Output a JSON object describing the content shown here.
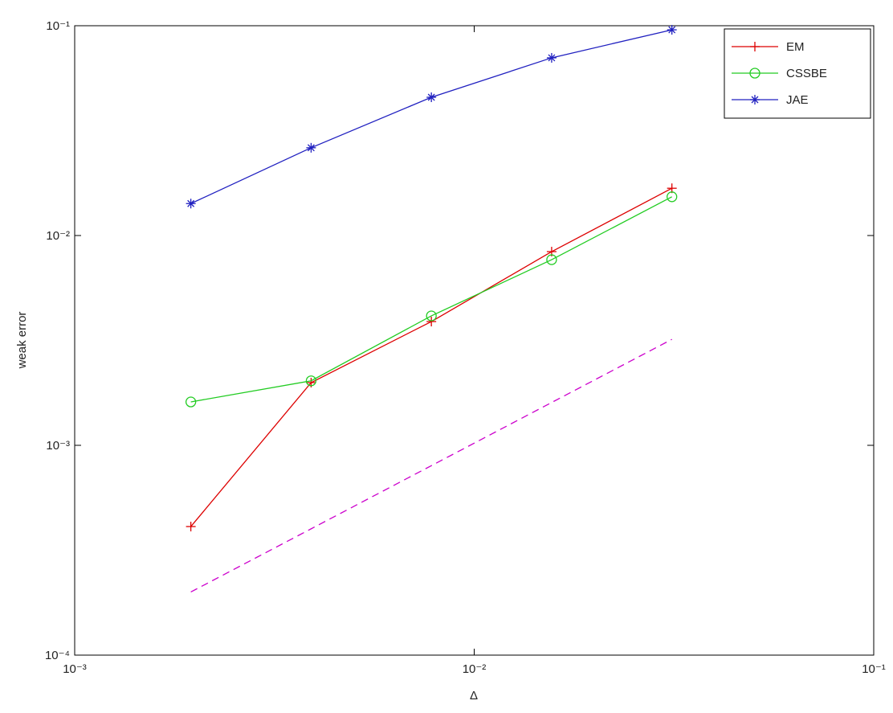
{
  "chart_data": {
    "type": "line",
    "log_x": true,
    "log_y": true,
    "xlabel": "Δ",
    "ylabel": "weak error",
    "x": [
      0.001953125,
      0.00390625,
      0.0078125,
      0.015625,
      0.03125
    ],
    "series": [
      {
        "name": "EM",
        "color": "#dd0000",
        "marker": "plus",
        "values": [
          0.00041,
          0.00199,
          0.00389,
          0.00838,
          0.0168
        ]
      },
      {
        "name": "CSSBE",
        "color": "#22cc22",
        "marker": "circle",
        "values": [
          0.00161,
          0.00203,
          0.00414,
          0.00767,
          0.0153
        ]
      },
      {
        "name": "JAE",
        "color": "#2020c0",
        "marker": "star",
        "values": [
          0.0142,
          0.0262,
          0.0456,
          0.0703,
          0.0956
        ]
      },
      {
        "color": "#cc00cc",
        "dash": true,
        "values": [
          0.0002,
          0.0004,
          0.0008,
          0.0016,
          0.0032
        ]
      }
    ],
    "xlim": [
      0.001,
      0.1
    ],
    "xticks": [
      {
        "value": 0.001,
        "label": "10⁻³"
      },
      {
        "value": 0.01,
        "label": "10⁻²"
      },
      {
        "value": 0.1,
        "label": "10⁻¹"
      }
    ],
    "ylim": [
      0.0001,
      0.1
    ],
    "yticks": [
      {
        "value": 0.0001,
        "label": "10⁻⁴"
      },
      {
        "value": 0.001,
        "label": "10⁻³"
      },
      {
        "value": 0.01,
        "label": "10⁻²"
      },
      {
        "value": 0.1,
        "label": "10⁻¹"
      }
    ],
    "legend": "top-right"
  }
}
